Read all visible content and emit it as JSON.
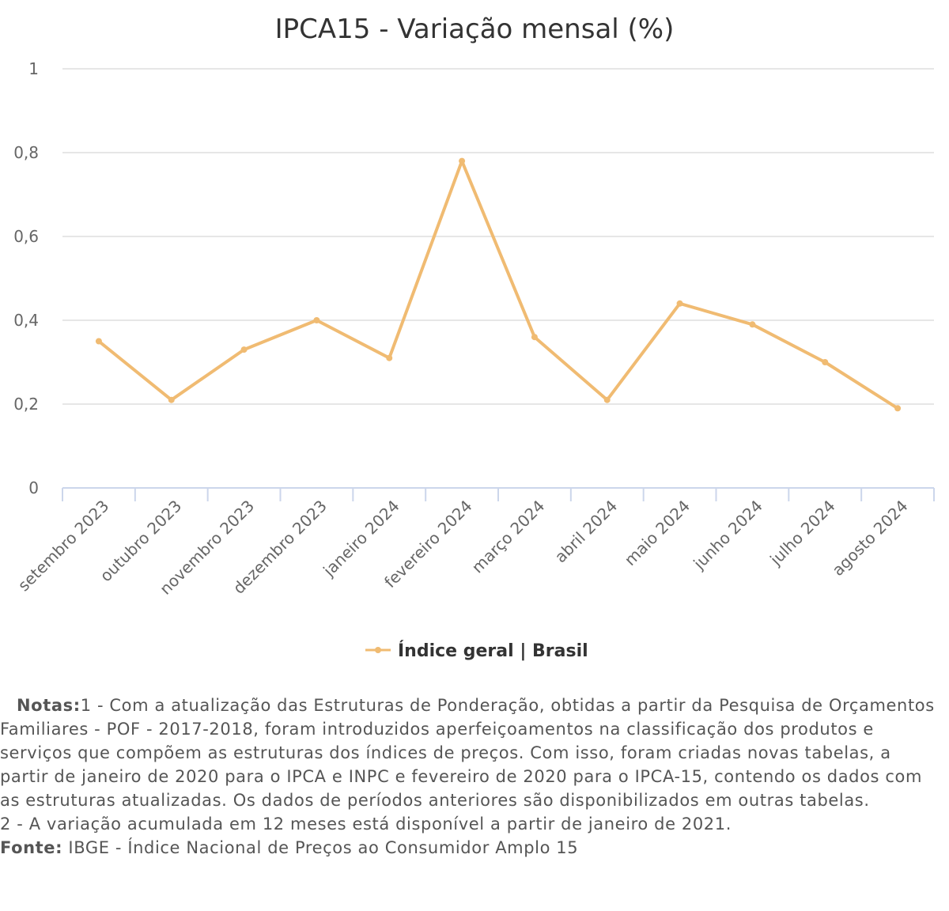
{
  "chart_data": {
    "type": "line",
    "title": "IPCA15 - Variação mensal (%)",
    "categories": [
      "setembro 2023",
      "outubro 2023",
      "novembro 2023",
      "dezembro 2023",
      "janeiro 2024",
      "fevereiro 2024",
      "março 2024",
      "abril 2024",
      "maio 2024",
      "junho 2024",
      "julho 2024",
      "agosto 2024"
    ],
    "series": [
      {
        "name": "Índice geral | Brasil",
        "color": "#f0bb72",
        "values": [
          0.35,
          0.21,
          0.33,
          0.4,
          0.31,
          0.78,
          0.36,
          0.21,
          0.44,
          0.39,
          0.3,
          0.19
        ]
      }
    ],
    "ylim": [
      0,
      1
    ],
    "yticks": [
      "0",
      "0,2",
      "0,4",
      "0,6",
      "0,8",
      "1"
    ],
    "grid": true,
    "legend_position": "bottom-center"
  },
  "notes": {
    "label": "Notas:",
    "lines": [
      "1 - Com a atualização das Estruturas de Ponderação, obtidas a partir da Pesquisa de Orçamentos",
      "Familiares - POF - 2017-2018, foram introduzidos aperfeiçoamentos na classificação dos produtos e",
      "serviços que compõem as estruturas dos índices de preços. Com isso, foram criadas novas tabelas, a",
      "partir de janeiro de 2020 para o IPCA e INPC e fevereiro de 2020 para o IPCA-15, contendo os dados com",
      "as estruturas atualizadas. Os dados de períodos anteriores são disponibilizados em outras tabelas.",
      "2 - A variação acumulada em 12 meses está disponível a partir de janeiro de 2021."
    ],
    "source_label": "Fonte:",
    "source_text": " IBGE - Índice Nacional de Preços ao Consumidor Amplo 15"
  },
  "colors": {
    "grid": "#e6e6e6",
    "axis": "#ccd6eb",
    "text": "#333333",
    "label": "#666666"
  }
}
